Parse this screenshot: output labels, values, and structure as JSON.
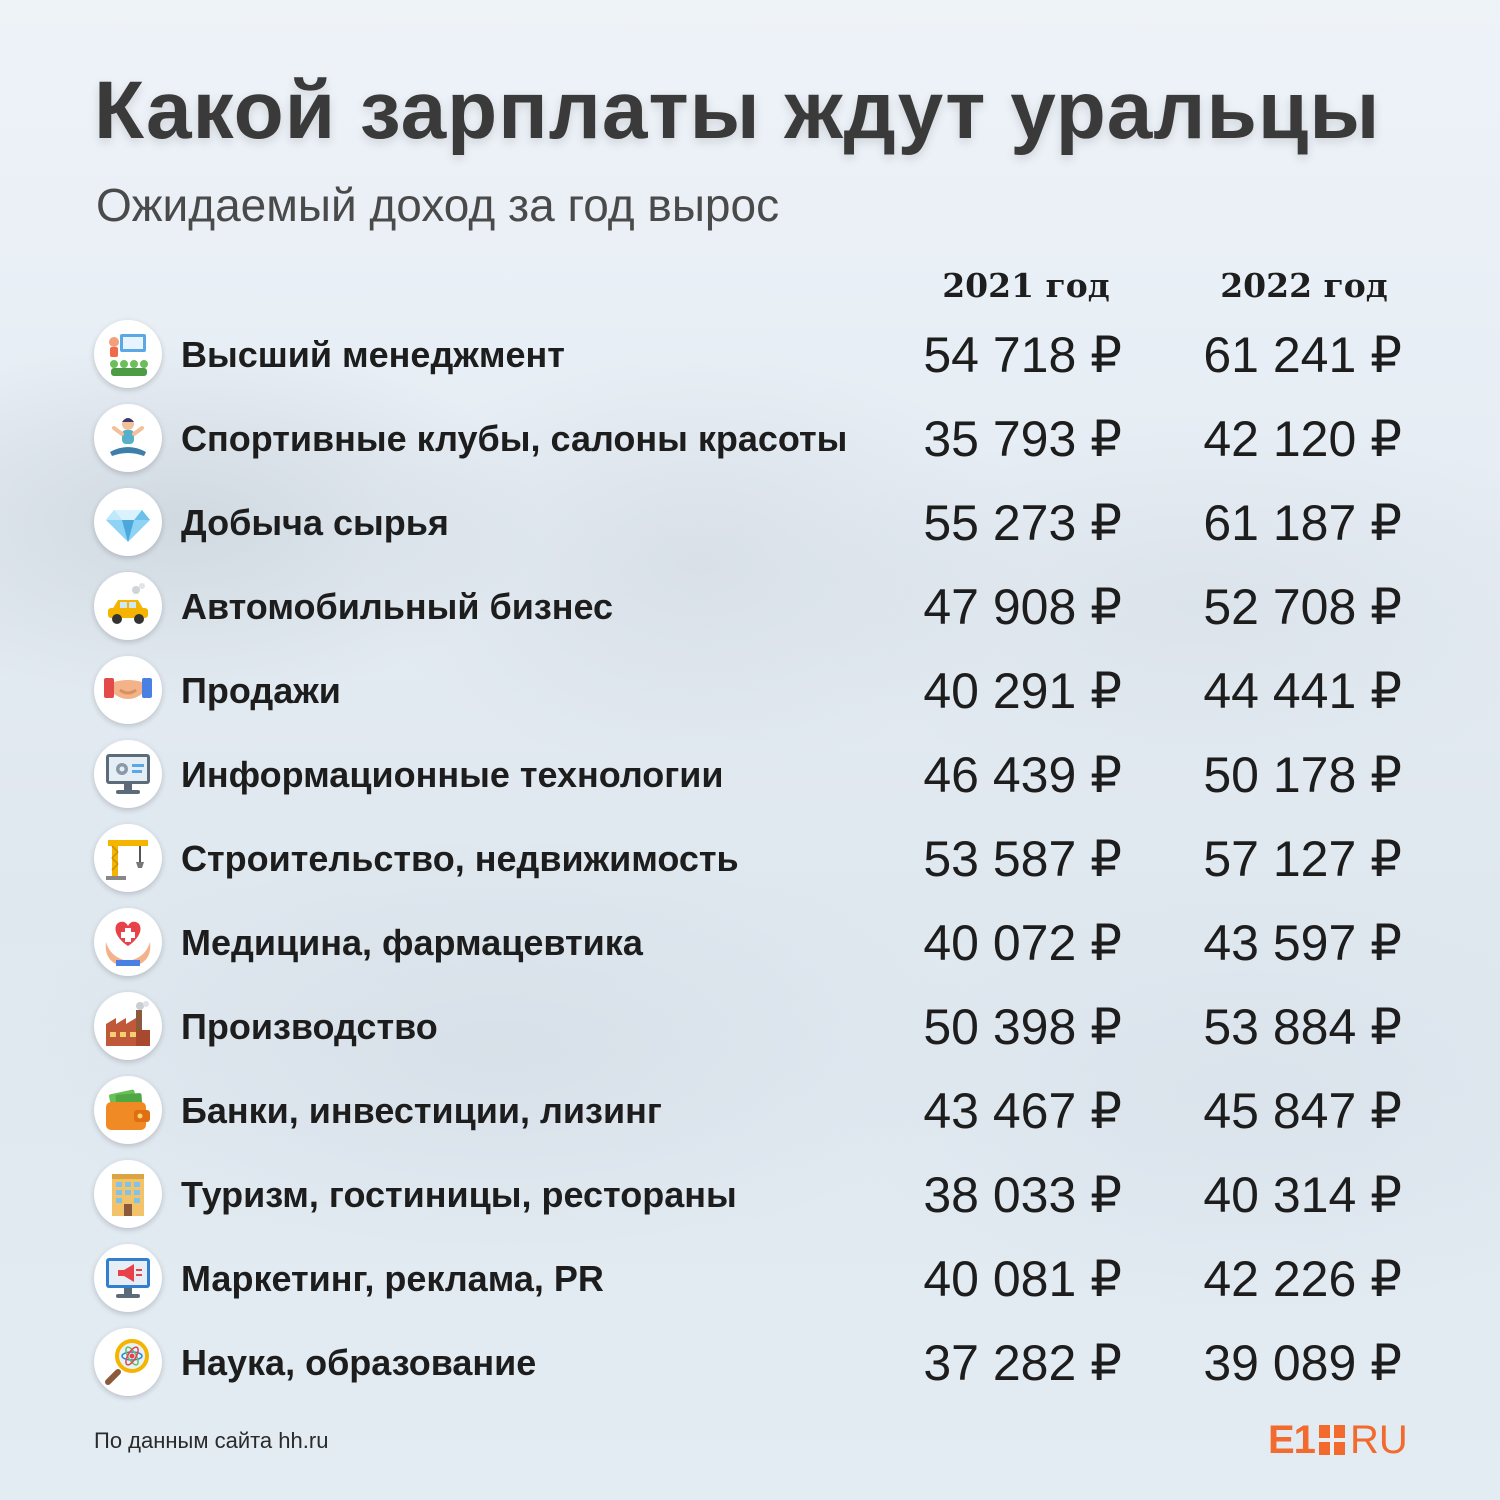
{
  "title": "Какой зарплаты ждут уральцы",
  "subtitle": "Ожидаемый доход за год вырос",
  "source": "По данным сайта hh.ru",
  "logo": {
    "e1": "E1",
    "ru": "RU",
    "color": "#f26a2e"
  },
  "chart_data": {
    "type": "table",
    "columns": [
      "2021 год",
      "2022 год"
    ],
    "currency": "₽",
    "rows": [
      {
        "category": "Высший менеджмент",
        "icon": "management-icon",
        "v2021": 54718,
        "v2022": 61241,
        "d2021": "54 718 ₽",
        "d2022": "61 241 ₽"
      },
      {
        "category": "Спортивные клубы, салоны красоты",
        "icon": "yoga-icon",
        "v2021": 35793,
        "v2022": 42120,
        "d2021": "35 793 ₽",
        "d2022": "42 120 ₽"
      },
      {
        "category": "Добыча сырья",
        "icon": "diamond-icon",
        "v2021": 55273,
        "v2022": 61187,
        "d2021": "55 273 ₽",
        "d2022": "61 187 ₽"
      },
      {
        "category": "Автомобильный бизнес",
        "icon": "car-icon",
        "v2021": 47908,
        "v2022": 52708,
        "d2021": "47 908 ₽",
        "d2022": "52 708 ₽"
      },
      {
        "category": "Продажи",
        "icon": "handshake-icon",
        "v2021": 40291,
        "v2022": 44441,
        "d2021": "40 291 ₽",
        "d2022": "44 441 ₽"
      },
      {
        "category": "Информационные технологии",
        "icon": "computer-settings-icon",
        "v2021": 46439,
        "v2022": 50178,
        "d2021": "46 439 ₽",
        "d2022": "50 178 ₽"
      },
      {
        "category": "Строительство, недвижимость",
        "icon": "crane-icon",
        "v2021": 53587,
        "v2022": 57127,
        "d2021": "53 587 ₽",
        "d2022": "57 127 ₽"
      },
      {
        "category": "Медицина, фармацевтика",
        "icon": "heart-hands-icon",
        "v2021": 40072,
        "v2022": 43597,
        "d2021": "40 072 ₽",
        "d2022": "43 597 ₽"
      },
      {
        "category": "Производство",
        "icon": "factory-icon",
        "v2021": 50398,
        "v2022": 53884,
        "d2021": "50 398 ₽",
        "d2022": "53 884 ₽"
      },
      {
        "category": "Банки, инвестиции, лизинг",
        "icon": "wallet-icon",
        "v2021": 43467,
        "v2022": 45847,
        "d2021": "43 467 ₽",
        "d2022": "45 847 ₽"
      },
      {
        "category": "Туризм, гостиницы, рестораны",
        "icon": "hotel-icon",
        "v2021": 38033,
        "v2022": 40314,
        "d2021": "38 033 ₽",
        "d2022": "40 314 ₽"
      },
      {
        "category": "Маркетинг, реклама, PR",
        "icon": "megaphone-monitor-icon",
        "v2021": 40081,
        "v2022": 42226,
        "d2021": "40 081 ₽",
        "d2022": "42 226 ₽"
      },
      {
        "category": "Наука, образование",
        "icon": "magnifier-atom-icon",
        "v2021": 37282,
        "v2022": 39089,
        "d2021": "37 282 ₽",
        "d2022": "39 089 ₽"
      }
    ]
  }
}
